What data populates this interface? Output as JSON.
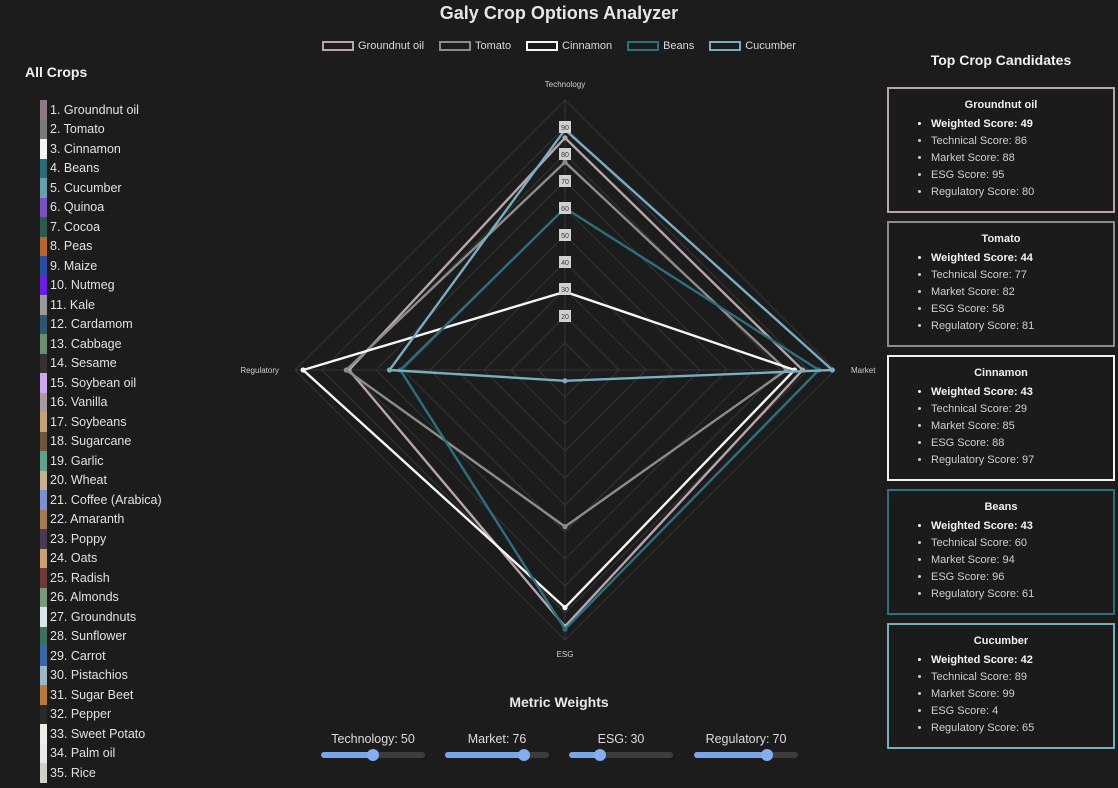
{
  "app": {
    "title": "Galy Crop Options Analyzer"
  },
  "sidebar": {
    "title": "All Crops",
    "crops": [
      {
        "label": "1. Groundnut oil",
        "color": "#8e7a86"
      },
      {
        "label": "2. Tomato",
        "color": "#7a7a7a"
      },
      {
        "label": "3. Cinnamon",
        "color": "#f2f2f2"
      },
      {
        "label": "4. Beans",
        "color": "#2e6a78"
      },
      {
        "label": "5. Cucumber",
        "color": "#6a9fb0"
      },
      {
        "label": "6. Quinoa",
        "color": "#7a4fbf"
      },
      {
        "label": "7. Cocoa",
        "color": "#2e5a4e"
      },
      {
        "label": "8. Peas",
        "color": "#b8662e"
      },
      {
        "label": "9. Maize",
        "color": "#2b4f9e"
      },
      {
        "label": "10. Nutmeg",
        "color": "#6a1fe0"
      },
      {
        "label": "11. Kale",
        "color": "#9a9a9a"
      },
      {
        "label": "12. Cardamom",
        "color": "#2f5670"
      },
      {
        "label": "13. Cabbage",
        "color": "#6b8f6e"
      },
      {
        "label": "14. Sesame",
        "color": "#333333"
      },
      {
        "label": "15. Soybean oil",
        "color": "#cfa8f0"
      },
      {
        "label": "16. Vanilla",
        "color": "#a89aa0"
      },
      {
        "label": "17. Soybeans",
        "color": "#c4a07a"
      },
      {
        "label": "18. Sugarcane",
        "color": "#6e5438"
      },
      {
        "label": "19. Garlic",
        "color": "#5fa08e"
      },
      {
        "label": "20. Wheat",
        "color": "#c9ad90"
      },
      {
        "label": "21. Coffee (Arabica)",
        "color": "#7f8fce"
      },
      {
        "label": "22. Amaranth",
        "color": "#a27c50"
      },
      {
        "label": "23. Poppy",
        "color": "#4a3a50"
      },
      {
        "label": "24. Oats",
        "color": "#c9a272"
      },
      {
        "label": "25. Radish",
        "color": "#6e3a36"
      },
      {
        "label": "26. Almonds",
        "color": "#7a9a7e"
      },
      {
        "label": "27. Groundnuts",
        "color": "#d9e6ec"
      },
      {
        "label": "28. Sunflower",
        "color": "#3e6e5e"
      },
      {
        "label": "29. Carrot",
        "color": "#3a66a8"
      },
      {
        "label": "30. Pistachios",
        "color": "#9ab8c6"
      },
      {
        "label": "31. Sugar Beet",
        "color": "#b87a3e"
      },
      {
        "label": "32. Pepper",
        "color": "#2a2a2a"
      },
      {
        "label": "33. Sweet Potato",
        "color": "#f0ece6"
      },
      {
        "label": "34. Palm oil",
        "color": "#e8e8e8"
      },
      {
        "label": "35. Rice",
        "color": "#d0d0c8"
      }
    ]
  },
  "legend": {
    "items": [
      {
        "label": "Groundnut oil",
        "color": "#b9a4ad"
      },
      {
        "label": "Tomato",
        "color": "#8c8c8c"
      },
      {
        "label": "Cinnamon",
        "color": "#f5f5f5"
      },
      {
        "label": "Beans",
        "color": "#2f6f7d"
      },
      {
        "label": "Cucumber",
        "color": "#79adc0"
      }
    ]
  },
  "chart_data": {
    "type": "radar",
    "axes": [
      "Technology",
      "Market",
      "ESG",
      "Regulatory"
    ],
    "r_range": [
      0,
      100
    ],
    "tick_labels": [
      "90",
      "80",
      "70",
      "60",
      "50",
      "40",
      "30",
      "20"
    ],
    "series": [
      {
        "name": "Groundnut oil",
        "values": [
          86,
          88,
          95,
          80
        ],
        "color": "#b9a4ad"
      },
      {
        "name": "Tomato",
        "values": [
          77,
          82,
          58,
          81
        ],
        "color": "#8c8c8c"
      },
      {
        "name": "Cinnamon",
        "values": [
          29,
          85,
          88,
          97
        ],
        "color": "#f5f5f5"
      },
      {
        "name": "Beans",
        "values": [
          60,
          94,
          96,
          61
        ],
        "color": "#2f6f7d"
      },
      {
        "name": "Cucumber",
        "values": [
          89,
          99,
          4,
          65
        ],
        "color": "#79adc0"
      }
    ]
  },
  "weights": {
    "title": "Metric Weights",
    "sliders": [
      {
        "label": "Technology:",
        "value": "50",
        "fraction": 0.5
      },
      {
        "label": "Market:",
        "value": "76",
        "fraction": 0.76
      },
      {
        "label": "ESG:",
        "value": "30",
        "fraction": 0.3
      },
      {
        "label": "Regulatory:",
        "value": "70",
        "fraction": 0.7
      }
    ]
  },
  "candidates": {
    "title": "Top Crop Candidates",
    "cards": [
      {
        "name": "Groundnut oil",
        "border": "#b9a4ad",
        "weighted_label": "Weighted Score:",
        "weighted": "49",
        "technical_label": "Technical Score:",
        "technical": "86",
        "market_label": "Market Score:",
        "market": "88",
        "esg_label": "ESG Score:",
        "esg": "95",
        "regulatory_label": "Regulatory Score:",
        "regulatory": "80"
      },
      {
        "name": "Tomato",
        "border": "#8c8c8c",
        "weighted_label": "Weighted Score:",
        "weighted": "44",
        "technical_label": "Technical Score:",
        "technical": "77",
        "market_label": "Market Score:",
        "market": "82",
        "esg_label": "ESG Score:",
        "esg": "58",
        "regulatory_label": "Regulatory Score:",
        "regulatory": "81"
      },
      {
        "name": "Cinnamon",
        "border": "#f0f0f0",
        "weighted_label": "Weighted Score:",
        "weighted": "43",
        "technical_label": "Technical Score:",
        "technical": "29",
        "market_label": "Market Score:",
        "market": "85",
        "esg_label": "ESG Score:",
        "esg": "88",
        "regulatory_label": "Regulatory Score:",
        "regulatory": "97"
      },
      {
        "name": "Beans",
        "border": "#2f6f7d",
        "weighted_label": "Weighted Score:",
        "weighted": "43",
        "technical_label": "Technical Score:",
        "technical": "60",
        "market_label": "Market Score:",
        "market": "94",
        "esg_label": "ESG Score:",
        "esg": "96",
        "regulatory_label": "Regulatory Score:",
        "regulatory": "61"
      },
      {
        "name": "Cucumber",
        "border": "#79adc0",
        "weighted_label": "Weighted Score:",
        "weighted": "42",
        "technical_label": "Technical Score:",
        "technical": "89",
        "market_label": "Market Score:",
        "market": "99",
        "esg_label": "ESG Score:",
        "esg": "4",
        "regulatory_label": "Regulatory Score:",
        "regulatory": "65"
      }
    ]
  }
}
